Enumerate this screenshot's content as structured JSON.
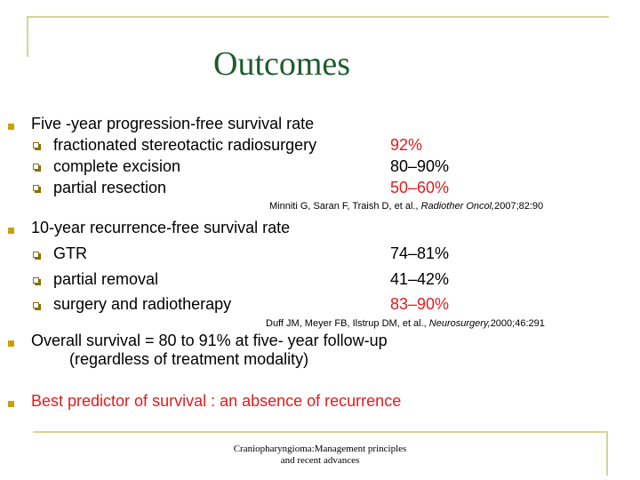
{
  "title": "Outcomes",
  "colors": {
    "title": "#1f5c2e",
    "accent_red": "#e31b1b",
    "bullet": "#c8a100",
    "rule": "#d8d29a"
  },
  "section1": {
    "heading": "Five -year progression-free survival rate",
    "rows": [
      {
        "label": "fractionated stereotactic radiosurgery",
        "value": "92%",
        "highlight": true
      },
      {
        "label": "complete excision",
        "value": "80–90%",
        "highlight": false
      },
      {
        "label": "partial resection",
        "value": "50–60%",
        "highlight": true
      }
    ],
    "citation": {
      "authors": "Minniti G, Saran F, Traish D, et al., ",
      "journal": "Radiother Oncol,",
      "ref": "2007;82:90"
    }
  },
  "section2": {
    "heading": "10-year recurrence-free survival rate",
    "rows": [
      {
        "label": "GTR",
        "value": "74–81%",
        "highlight": false
      },
      {
        "label": "partial removal",
        "value": "41–42%",
        "highlight": false
      },
      {
        "label": "surgery and radiotherapy",
        "value": "83–90%",
        "highlight": true
      }
    ],
    "citation": {
      "authors": "Duff JM, Meyer FB, Ilstrup DM, et al., ",
      "journal": "Neurosurgery,",
      "ref": "2000;46:291"
    }
  },
  "overall": {
    "line1": "Overall survival = 80 to 91% at five- year follow-up",
    "line2": "(regardless of treatment modality)"
  },
  "best_predictor": "Best predictor of survival : an absence of recurrence",
  "footer": {
    "line1": "Craniopharyngioma:Management principles",
    "line2": "and recent advances"
  }
}
